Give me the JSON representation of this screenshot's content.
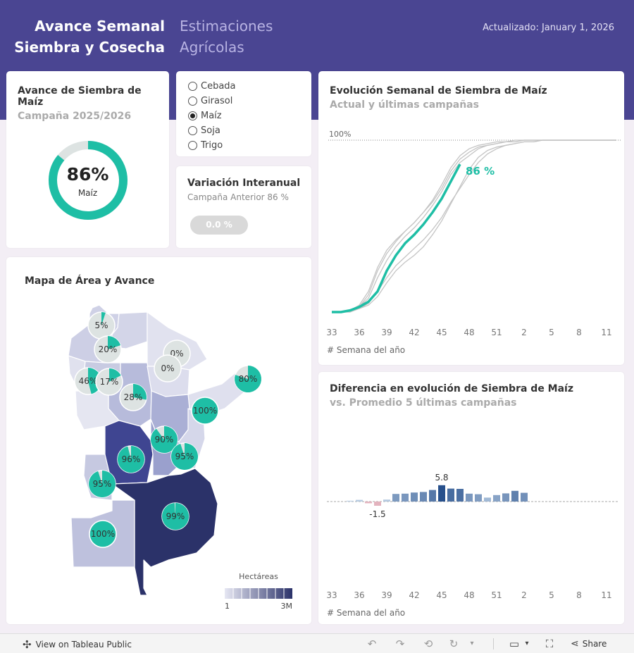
{
  "header": {
    "title_line1": "Avance Semanal",
    "title_line2": "Siembra y Cosecha",
    "subtitle_line1": "Estimaciones",
    "subtitle_line2": "Agrícolas",
    "updated": "Actualizado: January 1, 2026"
  },
  "colors": {
    "header": "#4a4592",
    "accent": "#1ebea5",
    "ring_bg": "#dde3e2",
    "bar_positive": "#3c6fa5",
    "bar_negative": "#e3b3be"
  },
  "kpi": {
    "title": "Avance de Siembra de Maíz",
    "subtitle": "Campaña 2025/2026",
    "value": "86%",
    "label": "Maíz",
    "progress": 0.86
  },
  "crop_filter": {
    "options": [
      "Cebada",
      "Girasol",
      "Maíz",
      "Soja",
      "Trigo"
    ],
    "selected": "Maíz"
  },
  "variation": {
    "title": "Variación Interanual",
    "subtitle": "Campaña Anterior 86 %",
    "badge": "0.0 %"
  },
  "map": {
    "title": "Mapa de Área y Avance",
    "legend_title": "Hectáreas",
    "legend_min": "1",
    "legend_max": "3M",
    "regions": [
      {
        "label": "5%",
        "progress": 0.05
      },
      {
        "label": "20%",
        "progress": 0.2
      },
      {
        "label": "0%",
        "progress": 0.0
      },
      {
        "label": "0%",
        "progress": 0.0
      },
      {
        "label": "46%",
        "progress": 0.46
      },
      {
        "label": "17%",
        "progress": 0.17
      },
      {
        "label": "80%",
        "progress": 0.8
      },
      {
        "label": "28%",
        "progress": 0.28
      },
      {
        "label": "100%",
        "progress": 1.0
      },
      {
        "label": "90%",
        "progress": 0.9
      },
      {
        "label": "96%",
        "progress": 0.96
      },
      {
        "label": "95%",
        "progress": 0.95
      },
      {
        "label": "95%",
        "progress": 0.95
      },
      {
        "label": "99%",
        "progress": 0.99
      },
      {
        "label": "100%",
        "progress": 1.0
      }
    ]
  },
  "evolution": {
    "title": "Evolución Semanal de Siembra de Maíz",
    "subtitle": "Actual y últimas campañas",
    "ref_label": "100%",
    "current_label": "86 %",
    "x_caption": "# Semana del año"
  },
  "difference": {
    "title": "Diferencia en evolución de Siembra de Maíz",
    "subtitle": "vs. Promedio 5 últimas campañas",
    "x_caption": "# Semana del año",
    "max_label": "5.8",
    "min_label": "-1.5"
  },
  "toolbar": {
    "view_label": "View on Tableau Public",
    "share_label": "Share"
  },
  "chart_data": [
    {
      "type": "line",
      "title": "Evolución Semanal de Siembra de Maíz",
      "subtitle": "Actual y últimas campañas",
      "xlabel": "# Semana del año",
      "ylabel": "",
      "x_ticks": [
        "33",
        "36",
        "39",
        "42",
        "45",
        "48",
        "51",
        "2",
        "5",
        "8",
        "11"
      ],
      "ylim": [
        0,
        100
      ],
      "series": [
        {
          "values": [
            0,
            0,
            1,
            3,
            6,
            12,
            24,
            33,
            40,
            45,
            51,
            58,
            66,
            76,
            86
          ]
        },
        {
          "values": [
            0,
            0,
            1,
            4,
            12,
            26,
            36,
            42,
            47,
            52,
            58,
            64,
            72,
            82,
            89,
            93,
            96,
            97,
            98,
            99,
            99,
            100,
            100,
            100,
            100,
            100,
            100,
            100,
            100,
            100,
            100,
            100
          ]
        },
        {
          "values": [
            0,
            0,
            1,
            3,
            8,
            20,
            30,
            38,
            44,
            49,
            55,
            62,
            70,
            80,
            87,
            91,
            95,
            97,
            98,
            99,
            99,
            100,
            100,
            100,
            100,
            100,
            100,
            100,
            100,
            100,
            100,
            100
          ]
        },
        {
          "values": [
            0,
            0,
            1,
            2,
            5,
            12,
            20,
            27,
            32,
            37,
            42,
            48,
            55,
            64,
            72,
            80,
            87,
            92,
            95,
            97,
            98,
            99,
            99,
            100,
            100,
            100,
            100,
            100,
            100,
            100,
            100,
            100
          ]
        },
        {
          "values": [
            0,
            0,
            0,
            2,
            4,
            9,
            17,
            24,
            29,
            33,
            38,
            45,
            53,
            63,
            73,
            83,
            90,
            94,
            96,
            97,
            98,
            99,
            99,
            100,
            100,
            100,
            100,
            100,
            100,
            100,
            100,
            100
          ]
        },
        {
          "values": [
            0,
            0,
            1,
            3,
            10,
            24,
            34,
            41,
            47,
            52,
            58,
            65,
            74,
            84,
            91,
            95,
            97,
            98,
            99,
            99,
            100,
            100,
            100,
            100,
            100,
            100,
            100,
            100,
            100,
            100,
            100,
            100
          ]
        }
      ]
    },
    {
      "type": "bar",
      "title": "Diferencia en evolución de Siembra de Maíz",
      "subtitle": "vs. Promedio 5 últimas campañas",
      "xlabel": "# Semana del año",
      "ylabel": "",
      "x_ticks": [
        "33",
        "36",
        "39",
        "42",
        "45",
        "48",
        "51",
        "2",
        "5",
        "8",
        "11"
      ],
      "values": [
        0,
        0,
        0.3,
        0.6,
        -0.6,
        -1.5,
        0.7,
        2.7,
        2.8,
        3.2,
        3.4,
        4.1,
        5.8,
        4.6,
        4.5,
        2.8,
        2.6,
        1.4,
        2.3,
        2.9,
        3.8,
        3.1
      ]
    }
  ]
}
